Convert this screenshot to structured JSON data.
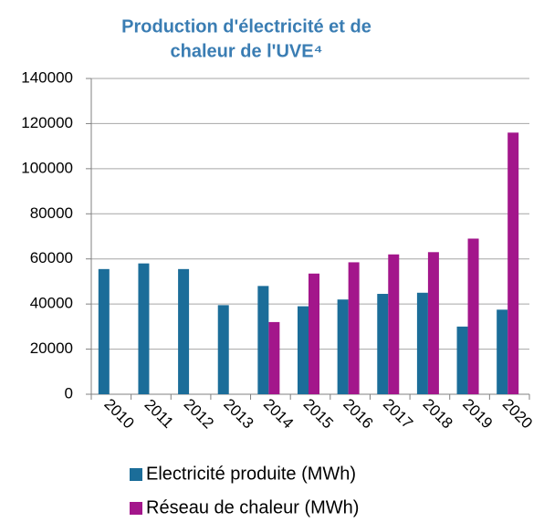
{
  "chart_data": {
    "type": "bar",
    "title": [
      "Production d'électricité et de",
      "chaleur de l'UVE⁴"
    ],
    "categories": [
      "2010",
      "2011",
      "2012",
      "2013",
      "2014",
      "2015",
      "2016",
      "2017",
      "2018",
      "2019",
      "2020"
    ],
    "series": [
      {
        "name": "Electricité produite (MWh)",
        "color": "#1b6d99",
        "values": [
          55500,
          58000,
          55500,
          39500,
          48000,
          39000,
          42000,
          44500,
          45000,
          30000,
          37500
        ]
      },
      {
        "name": "Réseau de chaleur (MWh)",
        "color": "#a3168b",
        "values": [
          null,
          null,
          null,
          null,
          32000,
          53500,
          58500,
          62000,
          63000,
          69000,
          116000
        ]
      }
    ],
    "ylim": [
      0,
      140000
    ],
    "yticks": [
      0,
      20000,
      40000,
      60000,
      80000,
      100000,
      120000,
      140000
    ],
    "grid": true,
    "legend": "bottom"
  }
}
